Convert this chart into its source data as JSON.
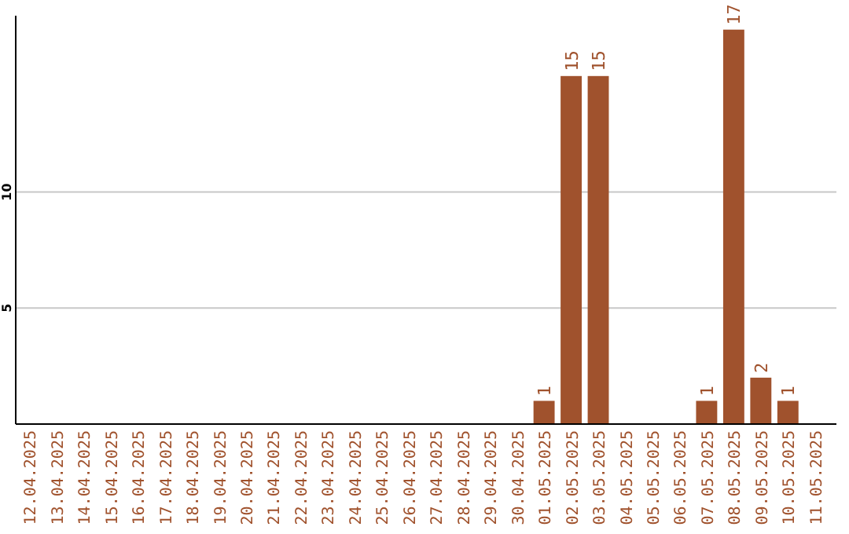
{
  "chart_data": {
    "type": "bar",
    "categories": [
      "12.04.2025",
      "13.04.2025",
      "14.04.2025",
      "15.04.2025",
      "16.04.2025",
      "17.04.2025",
      "18.04.2025",
      "19.04.2025",
      "20.04.2025",
      "21.04.2025",
      "22.04.2025",
      "23.04.2025",
      "24.04.2025",
      "25.04.2025",
      "26.04.2025",
      "27.04.2025",
      "28.04.2025",
      "29.04.2025",
      "30.04.2025",
      "01.05.2025",
      "02.05.2025",
      "03.05.2025",
      "04.05.2025",
      "05.05.2025",
      "06.05.2025",
      "07.05.2025",
      "08.05.2025",
      "09.05.2025",
      "10.05.2025",
      "11.05.2025"
    ],
    "values": [
      0,
      0,
      0,
      0,
      0,
      0,
      0,
      0,
      0,
      0,
      0,
      0,
      0,
      0,
      0,
      0,
      0,
      0,
      0,
      1,
      15,
      15,
      0,
      0,
      0,
      1,
      17,
      2,
      1,
      0
    ],
    "value_labels": [
      null,
      null,
      null,
      null,
      null,
      null,
      null,
      null,
      null,
      null,
      null,
      null,
      null,
      null,
      null,
      null,
      null,
      null,
      null,
      "1",
      "15",
      "15",
      null,
      null,
      null,
      "1",
      "17",
      "2",
      "1",
      null
    ],
    "color": "#a0522d",
    "ylim": [
      0,
      17.6
    ],
    "yticks": [
      5,
      10
    ],
    "grid": "y"
  }
}
